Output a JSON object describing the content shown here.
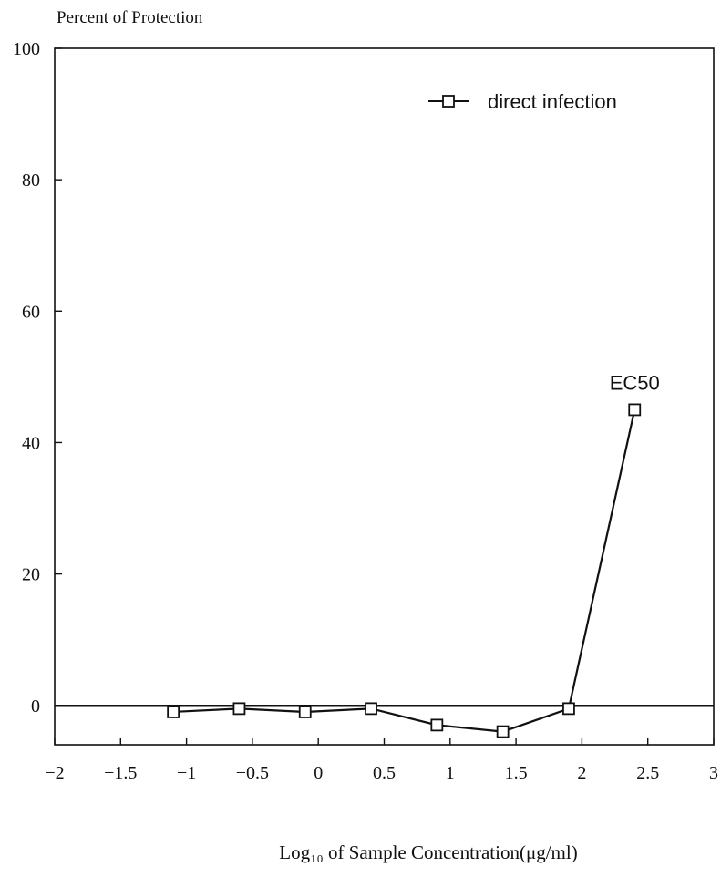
{
  "chart_data": {
    "type": "line",
    "ylabel": "Percent of Protection",
    "xlabel": "Log₁₀ of Sample Concentration(μg/ml)",
    "xlim": [
      -2,
      3
    ],
    "ylim": [
      -6,
      100
    ],
    "x_ticks": [
      -2,
      -1.5,
      -1,
      -0.5,
      0,
      0.5,
      1,
      1.5,
      2,
      2.5,
      3
    ],
    "x_tick_labels": [
      "−2",
      "−1.5",
      "−1",
      "−0.5",
      "0",
      "0.5",
      "1",
      "1.5",
      "2",
      "2.5",
      "3"
    ],
    "y_ticks": [
      0,
      20,
      40,
      60,
      80,
      100
    ],
    "y_tick_labels": [
      "0",
      "20",
      "40",
      "60",
      "80",
      "100"
    ],
    "grid": false,
    "zero_line": true,
    "legend_position": "top-right",
    "series": [
      {
        "name": "direct infection",
        "marker": "square",
        "color": "#111111",
        "x": [
          -1.1,
          -0.6,
          -0.1,
          0.4,
          0.9,
          1.4,
          1.9,
          2.4
        ],
        "y": [
          -1,
          -0.5,
          -1,
          -0.5,
          -3,
          -4,
          -0.5,
          45
        ]
      }
    ],
    "annotations": [
      {
        "text": "EC50",
        "x": 2.4,
        "y": 45
      }
    ]
  }
}
